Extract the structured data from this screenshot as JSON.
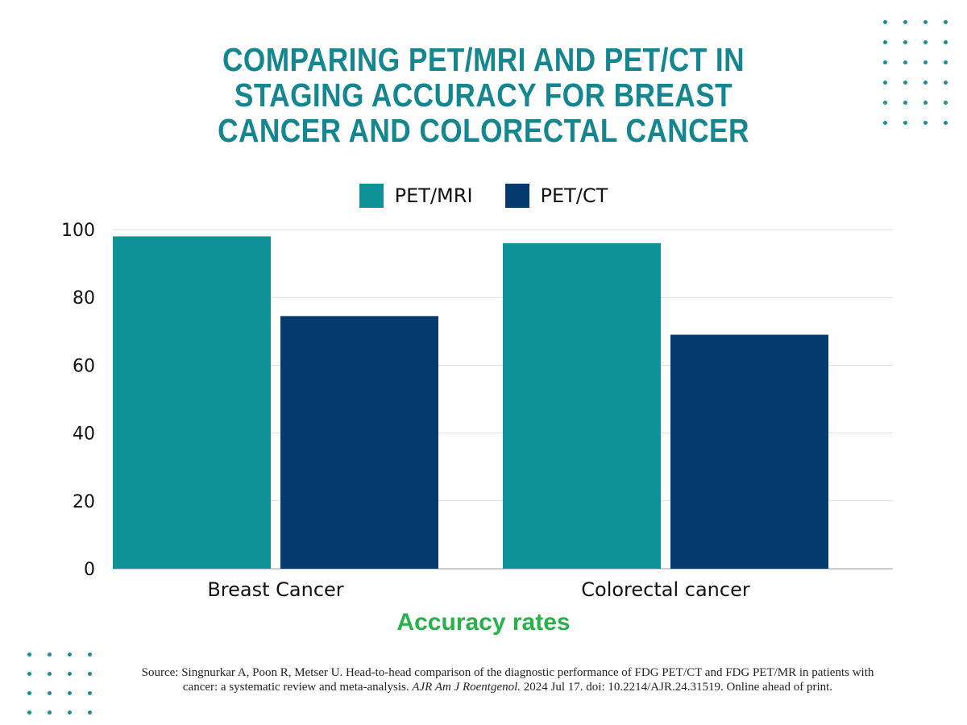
{
  "title": "COMPARING PET/MRI AND PET/CT IN STAGING ACCURACY FOR BREAST CANCER AND COLORECTAL CANCER",
  "colors": {
    "title": "#14868f",
    "pet_mri": "#0f9297",
    "pet_ct": "#053b6e",
    "xtitle": "#28b04a",
    "dots": "#1b8d98"
  },
  "chart_data": {
    "type": "bar",
    "title": "COMPARING PET/MRI AND PET/CT IN STAGING ACCURACY FOR BREAST CANCER AND COLORECTAL CANCER",
    "categories": [
      "Breast Cancer",
      "Colorectal cancer"
    ],
    "series": [
      {
        "name": "PET/MRI",
        "values": [
          98,
          96
        ]
      },
      {
        "name": "PET/CT",
        "values": [
          74.5,
          69
        ]
      }
    ],
    "xlabel": "Accuracy rates",
    "ylabel": "",
    "ylim": [
      0,
      100
    ],
    "yticks": [
      "0",
      "20",
      "40",
      "60",
      "80",
      "100"
    ],
    "grid": true,
    "legend": "top-center"
  },
  "source": {
    "prefix": "Source: Singnurkar A, Poon R, Metser U. Head-to-head comparison of the diagnostic performance of FDG PET/CT and FDG PET/MR in patients with cancer: a systematic review and meta-analysis.",
    "journal": "AJR Am J Roentgenol.",
    "suffix": "2024 Jul 17. doi: 10.2214/AJR.24.31519. Online ahead of print."
  }
}
